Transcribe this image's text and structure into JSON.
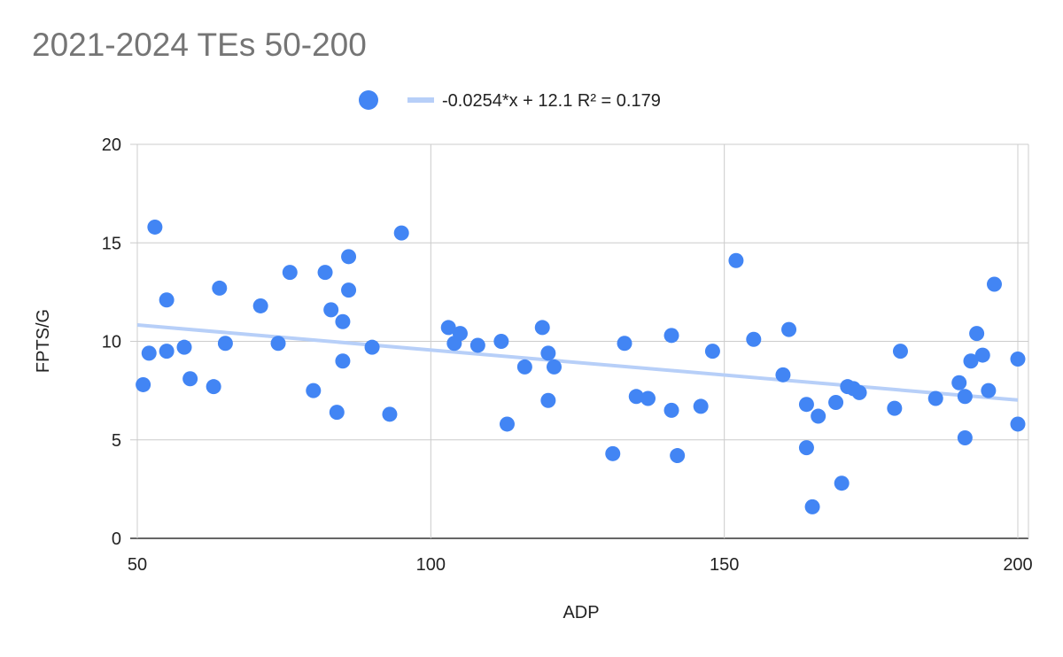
{
  "chart_data": {
    "type": "scatter",
    "title": "2021-2024 TEs 50-200",
    "xlabel": "ADP",
    "ylabel": "FPTS/G",
    "xlim": [
      50,
      200
    ],
    "ylim": [
      0,
      20
    ],
    "x_ticks": [
      50,
      100,
      150,
      200
    ],
    "y_ticks": [
      0,
      5,
      10,
      15,
      20
    ],
    "grid": true,
    "legend_position": "top",
    "colors": {
      "points": "#4285f4",
      "trendline": "#b7cff8",
      "grid": "#cccccc"
    },
    "series": [
      {
        "points": [
          [
            51,
            7.8
          ],
          [
            52,
            9.4
          ],
          [
            53,
            15.8
          ],
          [
            55,
            12.1
          ],
          [
            55,
            9.5
          ],
          [
            58,
            9.7
          ],
          [
            59,
            8.1
          ],
          [
            63,
            7.7
          ],
          [
            64,
            12.7
          ],
          [
            65,
            9.9
          ],
          [
            71,
            11.8
          ],
          [
            74,
            9.9
          ],
          [
            76,
            13.5
          ],
          [
            80,
            7.5
          ],
          [
            82,
            13.5
          ],
          [
            83,
            11.6
          ],
          [
            84,
            6.4
          ],
          [
            85,
            11.0
          ],
          [
            85,
            9.0
          ],
          [
            86,
            14.3
          ],
          [
            86,
            12.6
          ],
          [
            90,
            9.7
          ],
          [
            93,
            6.3
          ],
          [
            95,
            15.5
          ],
          [
            103,
            10.7
          ],
          [
            104,
            9.9
          ],
          [
            105,
            10.4
          ],
          [
            108,
            9.8
          ],
          [
            112,
            10.0
          ],
          [
            113,
            5.8
          ],
          [
            116,
            8.7
          ],
          [
            119,
            10.7
          ],
          [
            120,
            9.4
          ],
          [
            120,
            7.0
          ],
          [
            121,
            8.7
          ],
          [
            131,
            4.3
          ],
          [
            133,
            9.9
          ],
          [
            135,
            7.2
          ],
          [
            137,
            7.1
          ],
          [
            141,
            10.3
          ],
          [
            141,
            6.5
          ],
          [
            142,
            4.2
          ],
          [
            146,
            6.7
          ],
          [
            148,
            9.5
          ],
          [
            152,
            14.1
          ],
          [
            155,
            10.1
          ],
          [
            160,
            8.3
          ],
          [
            161,
            10.6
          ],
          [
            164,
            6.8
          ],
          [
            164,
            4.6
          ],
          [
            165,
            1.6
          ],
          [
            166,
            6.2
          ],
          [
            169,
            6.9
          ],
          [
            170,
            2.8
          ],
          [
            171,
            7.7
          ],
          [
            172,
            7.6
          ],
          [
            173,
            7.4
          ],
          [
            179,
            6.6
          ],
          [
            180,
            9.5
          ],
          [
            186,
            7.1
          ],
          [
            190,
            7.9
          ],
          [
            191,
            7.2
          ],
          [
            191,
            5.1
          ],
          [
            192,
            9.0
          ],
          [
            193,
            10.4
          ],
          [
            194,
            9.3
          ],
          [
            195,
            7.5
          ],
          [
            196,
            12.9
          ],
          [
            200,
            9.1
          ],
          [
            200,
            5.8
          ]
        ]
      }
    ],
    "trendline": {
      "slope": -0.0254,
      "intercept": 12.1,
      "label": "-0.0254*x + 12.1 R² = 0.179"
    }
  }
}
